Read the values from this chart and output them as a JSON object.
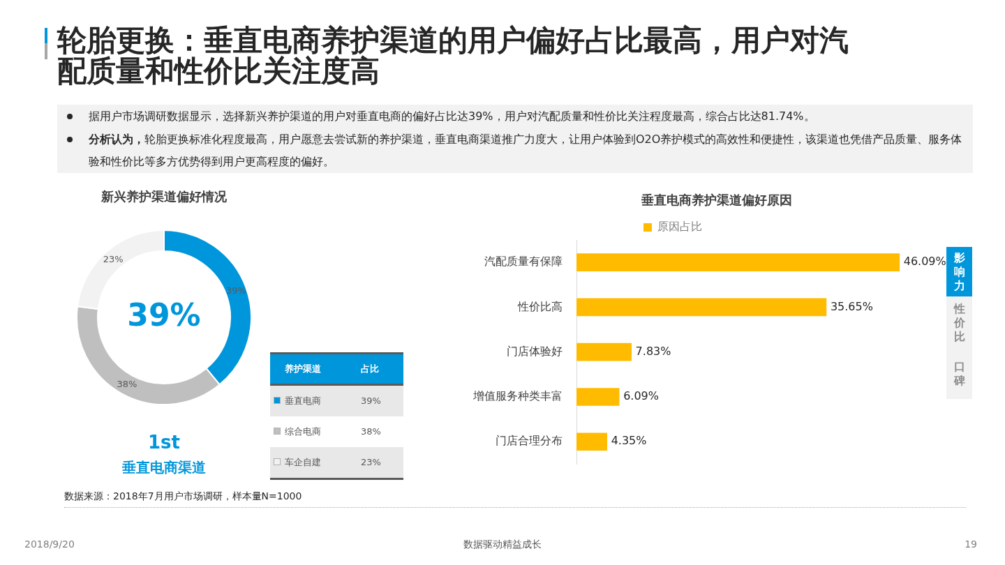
{
  "chart_data": [
    {
      "type": "other",
      "title": "轮胎更换：垂直电商养护渠道的用户偏好占比最高，用户对汽配质量和性价比关注度高",
      "annotations": [
        "据用户市场调研数据显示，选择新兴养护渠道的用户对垂直电商的偏好占比达39%，用户对汽配质量和性价比关注程度最高，综合占比达81.74%。",
        "分析认为，",
        "轮胎更换标准化程度最高，用户愿意去尝试新的养护渠道，垂直电商渠道推广力度大，让用户体验到O2O养护模式的高效性和便捷性，该渠道也凭借产品质量、服务体验和性价比等多方优势得到用户更高程度的偏好。",
        "数据来源：2018年7月用户市场调研，样本量N=1000",
        "2018/9/20",
        "数据驱动精益成长",
        "19"
      ]
    },
    {
      "type": "donut",
      "title": "新兴养护渠道偏好情况",
      "categories": [
        "垂直电商",
        "综合电商",
        "车企自建"
      ],
      "values": [
        39,
        38,
        23
      ],
      "colors": [
        "#0096db",
        "#bfbfbf",
        "#f2f2f2"
      ],
      "value_labels": [
        "39%",
        "38%",
        "23%"
      ],
      "legend": "bottom right",
      "annotations": [
        "39%",
        "1st",
        "垂直电商渠道",
        "养护渠道",
        "占比"
      ]
    },
    {
      "type": "bar",
      "orientation": "horizontal",
      "title": "垂直电商养护渠道偏好原因",
      "categories": [
        "汽配质量有保障",
        "性价比高",
        "门店体验好",
        "增值服务种类丰富",
        "门店合理分布"
      ],
      "series": [
        {
          "name": "原因占比",
          "color": "#ffbb00",
          "values": [
            46.09,
            35.65,
            7.83,
            6.09,
            4.35
          ],
          "value_labels": [
            "46.09%",
            "35.65%",
            "7.83%",
            "6.09%",
            "4.35%"
          ]
        }
      ],
      "tick_labels": "y",
      "legend": "top",
      "annotations": [
        "影响力",
        "性价比",
        "口碑"
      ]
    }
  ]
}
